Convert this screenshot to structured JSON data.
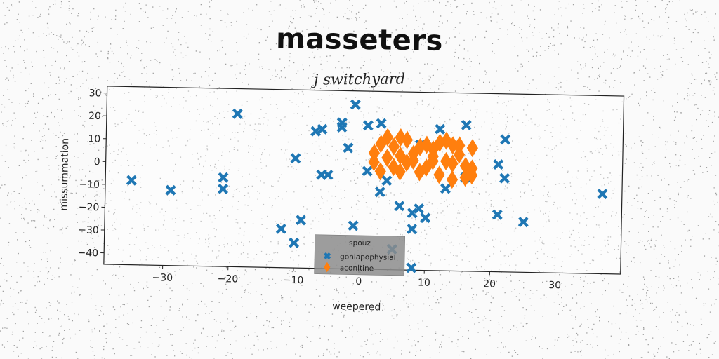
{
  "title": "masseters",
  "subtitle": "j switchyard",
  "chart_data": {
    "type": "scatter",
    "xlabel": "weepered",
    "ylabel": "missummation",
    "xlim": [
      -39,
      40
    ],
    "ylim": [
      -45,
      33
    ],
    "xticks": [
      -30,
      -20,
      -10,
      0,
      10,
      20,
      30
    ],
    "yticks": [
      30,
      20,
      10,
      0,
      -10,
      -20,
      -30,
      -40
    ],
    "grid": false,
    "legend": {
      "title": "spouz",
      "placement": "lower-center"
    },
    "series": [
      {
        "name": "goniapophysial",
        "marker": "x",
        "color": "#1f77b4",
        "points": [
          [
            -35,
            -8
          ],
          [
            -29,
            -12
          ],
          [
            -21,
            -11
          ],
          [
            -21,
            -6
          ],
          [
            -19,
            22
          ],
          [
            -10,
            3
          ],
          [
            -10,
            -34
          ],
          [
            -9,
            -24
          ],
          [
            -12,
            -28
          ],
          [
            -7,
            15
          ],
          [
            -6,
            16
          ],
          [
            -6,
            -4
          ],
          [
            -5,
            -4
          ],
          [
            -3,
            19
          ],
          [
            -3,
            17
          ],
          [
            -2,
            8
          ],
          [
            -1,
            27
          ],
          [
            -1,
            -26
          ],
          [
            1,
            18
          ],
          [
            1,
            -2
          ],
          [
            3,
            19
          ],
          [
            3,
            -11
          ],
          [
            4,
            -6
          ],
          [
            5,
            -36
          ],
          [
            6,
            -17
          ],
          [
            8,
            -20
          ],
          [
            8,
            -27
          ],
          [
            8,
            -44
          ],
          [
            9,
            -18
          ],
          [
            10,
            -22
          ],
          [
            9,
            10
          ],
          [
            12,
            17
          ],
          [
            13,
            -9
          ],
          [
            16,
            19
          ],
          [
            16,
            -4
          ],
          [
            21,
            2
          ],
          [
            21,
            -20
          ],
          [
            22,
            13
          ],
          [
            22,
            -4
          ],
          [
            25,
            -23
          ],
          [
            37,
            -10
          ]
        ]
      },
      {
        "name": "aconitine",
        "marker": "D",
        "color": "#ff7f0e",
        "points": [
          [
            2,
            6
          ],
          [
            3,
            10
          ],
          [
            4,
            13
          ],
          [
            5,
            9
          ],
          [
            6,
            13
          ],
          [
            7,
            12
          ],
          [
            8,
            6
          ],
          [
            9,
            9
          ],
          [
            10,
            10
          ],
          [
            11,
            8
          ],
          [
            12,
            11
          ],
          [
            13,
            12
          ],
          [
            14,
            10
          ],
          [
            15,
            10
          ],
          [
            17,
            9
          ],
          [
            2,
            2
          ],
          [
            4,
            4
          ],
          [
            5,
            0
          ],
          [
            7,
            2
          ],
          [
            8,
            3
          ],
          [
            10,
            0
          ],
          [
            11,
            3
          ],
          [
            13,
            3
          ],
          [
            14,
            2
          ],
          [
            16,
            1
          ],
          [
            17,
            0
          ],
          [
            3,
            -2
          ],
          [
            6,
            -2
          ],
          [
            9,
            -2
          ],
          [
            12,
            -3
          ],
          [
            14,
            -5
          ],
          [
            16,
            -4
          ],
          [
            17,
            -3
          ],
          [
            6,
            5
          ],
          [
            11,
            5
          ],
          [
            15,
            6
          ]
        ]
      }
    ]
  }
}
